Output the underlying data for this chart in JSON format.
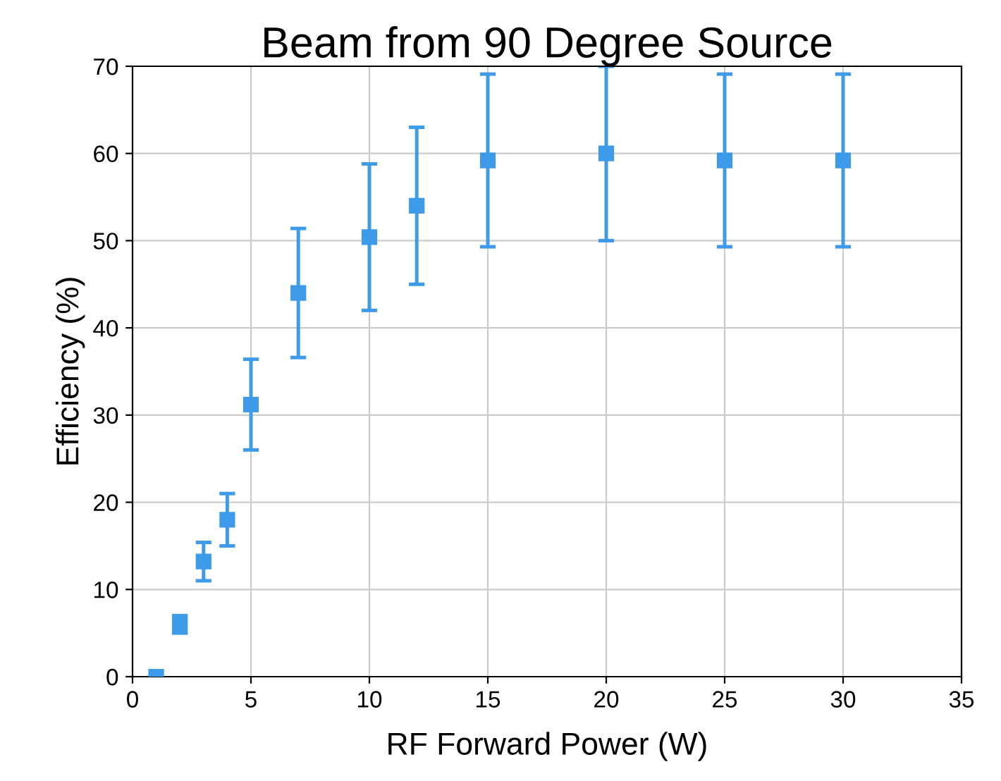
{
  "chart_data": {
    "type": "scatter",
    "title": "Beam from 90 Degree Source",
    "xlabel": "RF Forward Power (W)",
    "ylabel": "Efficiency (%)",
    "x": [
      1,
      2,
      3,
      4,
      5,
      7,
      10,
      12,
      15,
      20,
      25,
      30
    ],
    "series": [
      {
        "color": "#3d9be9",
        "values": [
          0,
          6,
          13.2,
          18,
          31.2,
          44,
          50.4,
          54,
          59.2,
          60,
          59.2,
          59.2
        ],
        "errors": [
          null,
          1,
          2.2,
          3,
          5.2,
          7.4,
          8.4,
          9,
          9.9,
          10,
          9.9,
          9.9
        ]
      }
    ],
    "xlim": [
      0,
      35
    ],
    "xticks": [
      0,
      5,
      10,
      15,
      20,
      25,
      30,
      35
    ],
    "ylim": [
      0,
      70
    ],
    "yticks": [
      0,
      10,
      20,
      30,
      40,
      50,
      60,
      70
    ],
    "grid": true,
    "marker": "square",
    "legend": false
  }
}
